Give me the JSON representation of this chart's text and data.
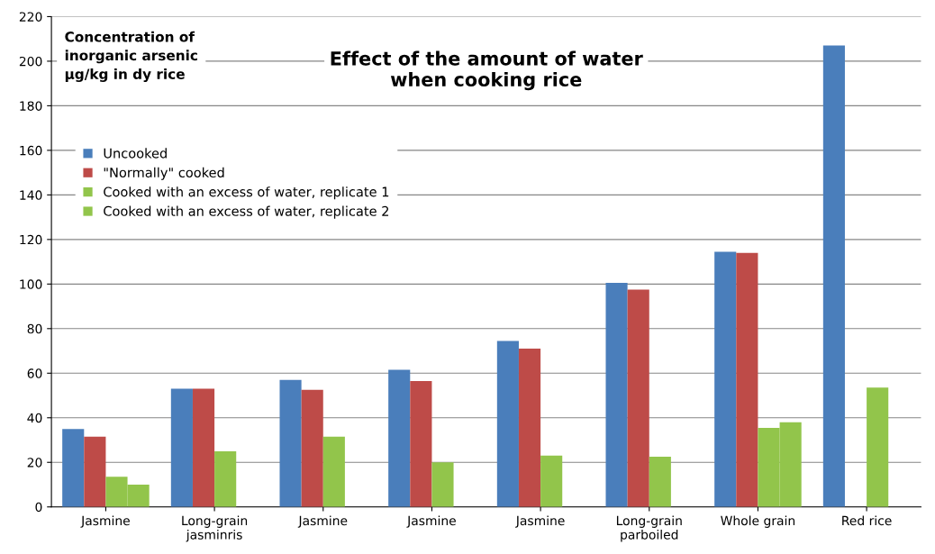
{
  "chart_data": {
    "type": "bar",
    "title": "Effect of the amount of water\nwhen cooking rice",
    "ylabel": "Concentration of\ninorganic arsenic\nµg/kg in dy rice",
    "categories": [
      "Jasmine",
      "Long-grain\njasminris",
      "Jasmine",
      "Jasmine",
      "Jasmine",
      "Long-grain\nparboiled",
      "Whole grain",
      "Red rice"
    ],
    "series": [
      {
        "name": "Uncooked",
        "color": "#4a7ebb",
        "values": [
          35,
          53,
          57,
          61.5,
          74.5,
          100.5,
          114.5,
          207
        ]
      },
      {
        "name": "\"Normally\" cooked",
        "color": "#be4b48",
        "values": [
          31.5,
          53,
          52.5,
          56.5,
          71,
          97.5,
          114,
          null
        ]
      },
      {
        "name": "Cooked with an excess of water, replicate 1",
        "color": "#92c54b",
        "values": [
          13.5,
          25,
          31.5,
          20,
          23,
          22.5,
          35.5,
          53.5
        ]
      },
      {
        "name": "Cooked with an excess of water, replicate 2",
        "color": "#92c54b",
        "values": [
          10,
          null,
          null,
          null,
          null,
          null,
          38,
          null
        ]
      }
    ],
    "ylim": [
      0,
      220
    ],
    "yticks": [
      0,
      20,
      40,
      60,
      80,
      100,
      120,
      140,
      160,
      180,
      200,
      220
    ],
    "grid": "y",
    "legend": "left"
  }
}
